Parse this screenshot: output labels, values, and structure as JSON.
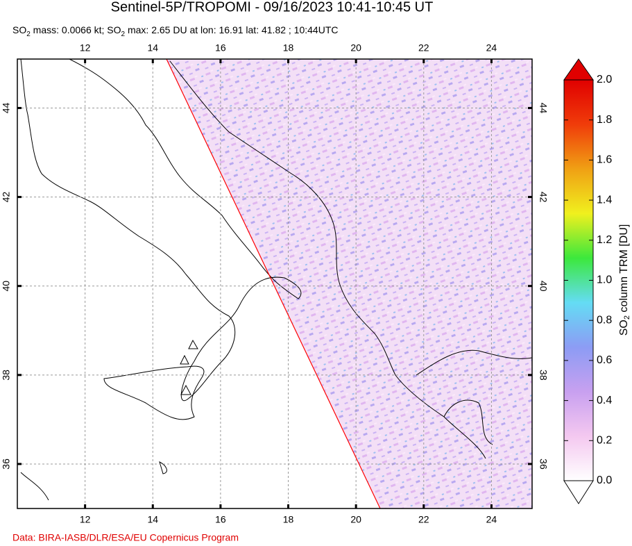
{
  "map": {
    "title": "Sentinel-5P/TROPOMI - 09/16/2023 10:41-10:45 UT",
    "subtitle_parts": [
      "SO",
      "2",
      " mass: 0.0066 kt; SO",
      "2",
      " max: 2.65 DU at lon: 16.91 lat: 41.82 ; 10:44UTC"
    ],
    "lon_range": [
      10,
      25.2
    ],
    "lat_range": [
      35,
      45.1
    ],
    "lon_ticks": [
      12,
      14,
      16,
      18,
      20,
      22,
      24
    ],
    "lat_ticks": [
      36,
      38,
      40,
      42,
      44
    ],
    "grid": true,
    "swath_color": "#ff0000",
    "colorbar": {
      "label_parts": [
        "SO",
        "2",
        " column TRM [DU]"
      ],
      "range": [
        0,
        2
      ],
      "ticks": [
        {
          "value": 0,
          "label": "0.0"
        },
        0.2,
        0.4,
        0.6,
        0.8,
        {
          "value": 1,
          "label": "1.0"
        },
        1.2,
        1.4,
        1.6,
        1.8,
        {
          "value": 2,
          "label": "2.0"
        }
      ],
      "colors": [
        "#ffffff",
        "#f4c8f0",
        "#c8a0f0",
        "#8c9cf4",
        "#64dcf4",
        "#3ce83c",
        "#f0f01e",
        "#f0a014",
        "#f03c0a",
        "#e00000"
      ]
    }
  },
  "footer": "Data: BIRA-IASB/DLR/ESA/EU Copernicus Program"
}
